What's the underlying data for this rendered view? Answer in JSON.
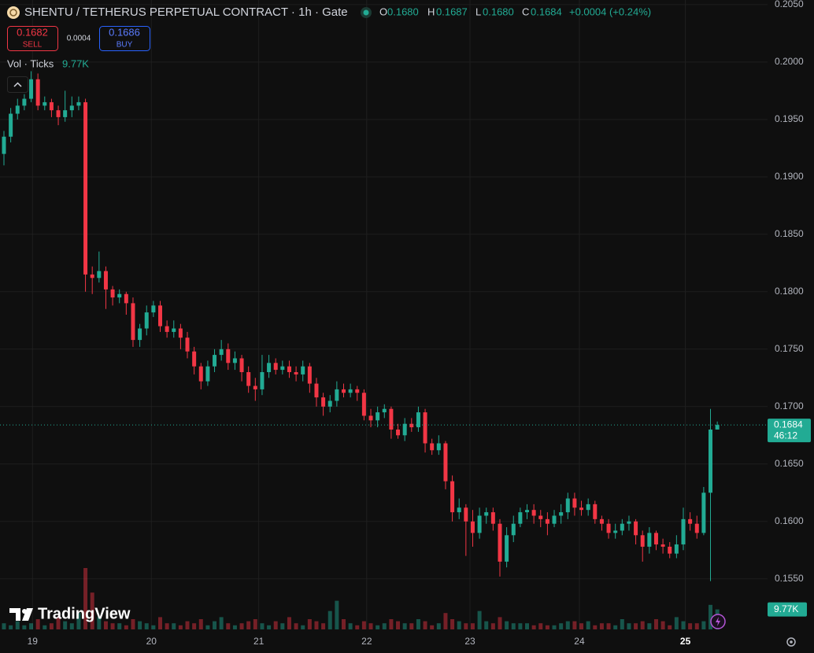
{
  "chart_data": {
    "type": "candlestick",
    "up_color": "#22ab94",
    "down_color": "#f23645",
    "open": [
      0.192,
      0.1935,
      0.1955,
      0.1962,
      0.1968,
      0.1985,
      0.1962,
      0.1965,
      0.1958,
      0.1952,
      0.1958,
      0.1962,
      0.1965,
      0.1815,
      0.1812,
      0.1818,
      0.1802,
      0.1795,
      0.1798,
      0.179,
      0.1758,
      0.1768,
      0.1782,
      0.1788,
      0.177,
      0.1765,
      0.1768,
      0.176,
      0.1748,
      0.1735,
      0.1722,
      0.1735,
      0.1745,
      0.175,
      0.1738,
      0.1742,
      0.173,
      0.1718,
      0.1715,
      0.173,
      0.1738,
      0.1732,
      0.1735,
      0.173,
      0.1728,
      0.1735,
      0.172,
      0.1708,
      0.17,
      0.1705,
      0.1715,
      0.1712,
      0.1715,
      0.1712,
      0.1692,
      0.1688,
      0.1695,
      0.1698,
      0.168,
      0.1675,
      0.1685,
      0.1682,
      0.1695,
      0.1668,
      0.1662,
      0.1668,
      0.1635,
      0.1608,
      0.1612,
      0.16,
      0.159,
      0.1605,
      0.1608,
      0.1598,
      0.1565,
      0.1588,
      0.1598,
      0.1608,
      0.161,
      0.1605,
      0.1602,
      0.1598,
      0.1605,
      0.1608,
      0.162,
      0.1612,
      0.161,
      0.1615,
      0.1602,
      0.1598,
      0.159,
      0.1592,
      0.1598,
      0.16,
      0.1588,
      0.1578,
      0.159,
      0.158,
      0.1578,
      0.1572,
      0.158,
      0.1602,
      0.1598,
      0.159,
      0.1625,
      0.168
    ],
    "high": [
      0.194,
      0.196,
      0.1968,
      0.1972,
      0.1992,
      0.199,
      0.197,
      0.1968,
      0.1962,
      0.1975,
      0.197,
      0.197,
      0.1968,
      0.1822,
      0.1835,
      0.1822,
      0.1805,
      0.1802,
      0.18,
      0.1795,
      0.1772,
      0.1788,
      0.1792,
      0.1792,
      0.1775,
      0.1775,
      0.1772,
      0.1765,
      0.1752,
      0.1738,
      0.174,
      0.175,
      0.1758,
      0.1755,
      0.1748,
      0.1745,
      0.1735,
      0.1725,
      0.1745,
      0.1745,
      0.1742,
      0.174,
      0.174,
      0.1735,
      0.174,
      0.1738,
      0.1725,
      0.1712,
      0.171,
      0.1722,
      0.172,
      0.172,
      0.1718,
      0.1715,
      0.1698,
      0.17,
      0.1702,
      0.17,
      0.1685,
      0.169,
      0.169,
      0.17,
      0.1698,
      0.1672,
      0.1675,
      0.167,
      0.164,
      0.162,
      0.1615,
      0.161,
      0.1612,
      0.1612,
      0.1612,
      0.1602,
      0.1595,
      0.1605,
      0.1612,
      0.1615,
      0.1615,
      0.161,
      0.1608,
      0.161,
      0.1615,
      0.1625,
      0.1625,
      0.1618,
      0.162,
      0.1618,
      0.1605,
      0.1602,
      0.1598,
      0.1602,
      0.1605,
      0.1602,
      0.1592,
      0.1595,
      0.1592,
      0.1585,
      0.1582,
      0.1588,
      0.1612,
      0.1608,
      0.1605,
      0.163,
      0.1698,
      0.1687
    ],
    "low": [
      0.191,
      0.193,
      0.195,
      0.1958,
      0.1965,
      0.1958,
      0.1958,
      0.1952,
      0.1945,
      0.1948,
      0.1952,
      0.1958,
      0.18,
      0.1798,
      0.1808,
      0.1785,
      0.1788,
      0.179,
      0.178,
      0.1752,
      0.1752,
      0.1762,
      0.1778,
      0.1765,
      0.176,
      0.176,
      0.175,
      0.1742,
      0.1728,
      0.1715,
      0.1718,
      0.173,
      0.174,
      0.1732,
      0.1732,
      0.1722,
      0.1712,
      0.1705,
      0.171,
      0.1725,
      0.1728,
      0.1728,
      0.1725,
      0.1722,
      0.1722,
      0.1712,
      0.17,
      0.1692,
      0.1695,
      0.17,
      0.1708,
      0.1708,
      0.1705,
      0.1688,
      0.1682,
      0.1682,
      0.169,
      0.1672,
      0.1672,
      0.167,
      0.1678,
      0.1678,
      0.166,
      0.1658,
      0.1658,
      0.1628,
      0.16,
      0.1602,
      0.157,
      0.1578,
      0.1585,
      0.1598,
      0.1592,
      0.1552,
      0.156,
      0.1582,
      0.1595,
      0.1602,
      0.1598,
      0.1595,
      0.1588,
      0.1595,
      0.1598,
      0.1602,
      0.1605,
      0.1605,
      0.1605,
      0.1598,
      0.1592,
      0.1585,
      0.1585,
      0.1588,
      0.1592,
      0.158,
      0.1565,
      0.1572,
      0.1575,
      0.1572,
      0.1568,
      0.1568,
      0.1575,
      0.1592,
      0.1585,
      0.1588,
      0.1548,
      0.168
    ],
    "close": [
      0.1935,
      0.1955,
      0.1962,
      0.1968,
      0.1985,
      0.1962,
      0.1965,
      0.1958,
      0.1952,
      0.1958,
      0.1962,
      0.1965,
      0.1815,
      0.1812,
      0.1818,
      0.1802,
      0.1795,
      0.1798,
      0.179,
      0.1758,
      0.1768,
      0.1782,
      0.1788,
      0.177,
      0.1765,
      0.1768,
      0.176,
      0.1748,
      0.1735,
      0.1722,
      0.1735,
      0.1745,
      0.175,
      0.1738,
      0.1742,
      0.173,
      0.1718,
      0.1715,
      0.173,
      0.1738,
      0.1732,
      0.1735,
      0.173,
      0.1728,
      0.1735,
      0.172,
      0.1708,
      0.17,
      0.1705,
      0.1715,
      0.1712,
      0.1715,
      0.1712,
      0.1692,
      0.1688,
      0.1695,
      0.1698,
      0.168,
      0.1675,
      0.1685,
      0.1682,
      0.1695,
      0.1668,
      0.1662,
      0.1668,
      0.1635,
      0.1608,
      0.1612,
      0.16,
      0.159,
      0.1605,
      0.1608,
      0.1598,
      0.1565,
      0.1588,
      0.1598,
      0.1608,
      0.161,
      0.1605,
      0.1602,
      0.1598,
      0.1605,
      0.1608,
      0.162,
      0.1612,
      0.161,
      0.1615,
      0.1602,
      0.1598,
      0.159,
      0.1592,
      0.1598,
      0.16,
      0.1588,
      0.1578,
      0.159,
      0.158,
      0.1578,
      0.1572,
      0.158,
      0.1602,
      0.1598,
      0.159,
      0.1625,
      0.168,
      0.1684
    ],
    "volume": [
      3,
      2,
      4,
      2,
      3,
      5,
      2,
      3,
      6,
      4,
      3,
      8,
      30,
      18,
      6,
      4,
      3,
      3,
      2,
      5,
      4,
      3,
      2,
      6,
      3,
      3,
      2,
      4,
      3,
      5,
      2,
      4,
      6,
      3,
      2,
      3,
      4,
      5,
      3,
      2,
      4,
      3,
      6,
      3,
      2,
      5,
      4,
      3,
      9,
      14,
      5,
      3,
      2,
      4,
      3,
      2,
      3,
      5,
      4,
      3,
      3,
      5,
      4,
      2,
      3,
      8,
      5,
      4,
      3,
      3,
      9,
      4,
      3,
      6,
      4,
      3,
      3,
      3,
      2,
      3,
      2,
      2,
      3,
      4,
      4,
      3,
      4,
      2,
      3,
      3,
      2,
      5,
      3,
      3,
      4,
      3,
      5,
      4,
      2,
      6,
      4,
      3,
      3,
      4,
      12,
      9.77
    ],
    "xlim": [
      -0.58,
      112.4
    ],
    "xticks": [
      {
        "value": 4.2,
        "label": "19"
      },
      {
        "value": 21.7,
        "label": "20"
      },
      {
        "value": 37.5,
        "label": "21"
      },
      {
        "value": 53.4,
        "label": "22"
      },
      {
        "value": 68.6,
        "label": "23"
      },
      {
        "value": 84.7,
        "label": "24"
      },
      {
        "value": 100.3,
        "label": "25"
      }
    ],
    "ylim": [
      0.1506,
      0.2054
    ],
    "yticks": [
      {
        "value": 0.205,
        "label": "0.2050"
      },
      {
        "value": 0.2,
        "label": "0.2000"
      },
      {
        "value": 0.195,
        "label": "0.1950"
      },
      {
        "value": 0.19,
        "label": "0.1900"
      },
      {
        "value": 0.185,
        "label": "0.1850"
      },
      {
        "value": 0.18,
        "label": "0.1800"
      },
      {
        "value": 0.175,
        "label": "0.1750"
      },
      {
        "value": 0.17,
        "label": "0.1700"
      },
      {
        "value": 0.165,
        "label": "0.1650"
      },
      {
        "value": 0.16,
        "label": "0.1600"
      },
      {
        "value": 0.155,
        "label": "0.1550"
      }
    ],
    "grid": true
  },
  "header": {
    "title": "SHENTU / TETHERUS PERPETUAL CONTRACT · 1h · Gate",
    "ohlc": [
      {
        "key": "O",
        "value": "0.1680"
      },
      {
        "key": "H",
        "value": "0.1687"
      },
      {
        "key": "L",
        "value": "0.1680"
      },
      {
        "key": "C",
        "value": "0.1684"
      }
    ],
    "change": "+0.0004 (+0.24%)"
  },
  "trade": {
    "sell_price": "0.1682",
    "sell_label": "SELL",
    "spread": "0.0004",
    "buy_price": "0.1686",
    "buy_label": "BUY"
  },
  "volume_legend": {
    "label": "Vol · Ticks",
    "value": "9.77K"
  },
  "price_tag": {
    "price": "0.1684",
    "countdown": "46:12"
  },
  "volume_tag": "9.77K",
  "brand": "TradingView"
}
